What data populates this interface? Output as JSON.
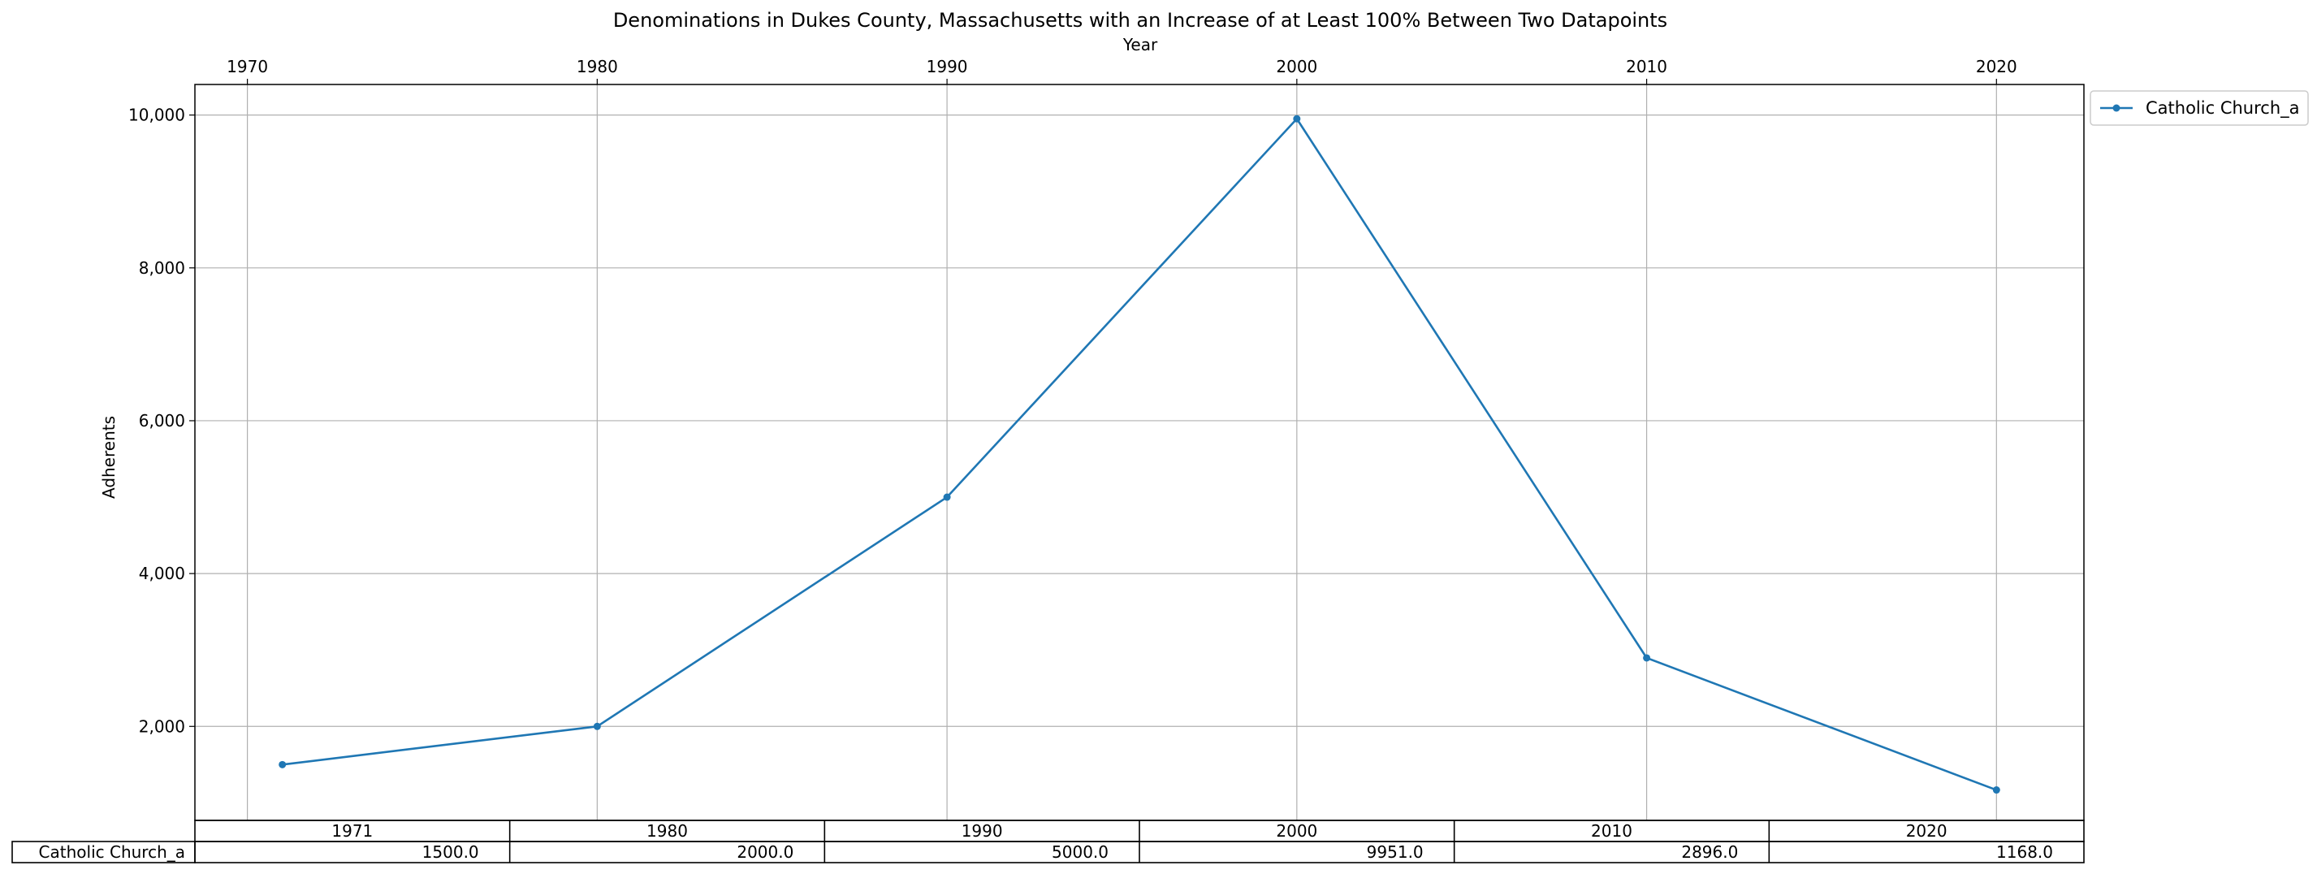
{
  "chart_data": {
    "type": "line",
    "title": "Denominations in Dukes County, Massachusetts with an Increase of at Least 100% Between Two Datapoints",
    "xlabel": "Year",
    "ylabel": "Adherents",
    "x_ticks": [
      "1970",
      "1980",
      "1990",
      "2000",
      "2010",
      "2020"
    ],
    "x_tick_values": [
      1970,
      1980,
      1990,
      2000,
      2010,
      2020
    ],
    "y_ticks": [
      "2,000",
      "4,000",
      "6,000",
      "8,000",
      "10,000"
    ],
    "y_tick_values": [
      2000,
      4000,
      6000,
      8000,
      10000
    ],
    "xlim": [
      1968.5,
      2022.5
    ],
    "ylim": [
      770,
      10400
    ],
    "grid": true,
    "legend_position": "outside top-right",
    "x": [
      1971,
      1980,
      1990,
      2000,
      2010,
      2020
    ],
    "series": [
      {
        "name": "Catholic Church_a",
        "color": "#1f77b4",
        "marker": "dot",
        "values": [
          1500,
          2000,
          5000,
          9951,
          2896,
          1168
        ]
      }
    ],
    "table": {
      "col_labels": [
        "1971",
        "1980",
        "1990",
        "2000",
        "2010",
        "2020"
      ],
      "row_label": "Catholic Church_a",
      "cells": [
        "1500.0",
        "2000.0",
        "5000.0",
        "9951.0",
        "2896.0",
        "1168.0"
      ]
    }
  }
}
